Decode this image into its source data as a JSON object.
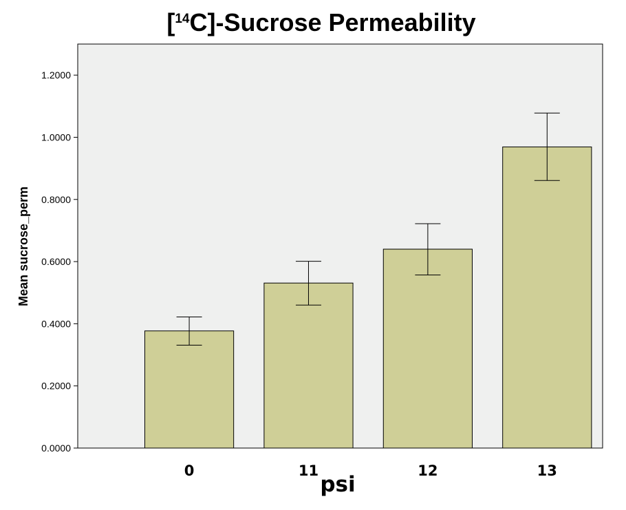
{
  "chart_data": {
    "type": "bar",
    "title": {
      "prefix": "[",
      "superscript": "14",
      "suffix": "C]-Sucrose Permeability"
    },
    "xlabel": "psi",
    "ylabel": "Mean sucrose_perm",
    "categories": [
      "0",
      "11",
      "12",
      "13"
    ],
    "values": [
      0.377,
      0.531,
      0.64,
      0.969
    ],
    "error_low": [
      0.331,
      0.46,
      0.557,
      0.861
    ],
    "error_high": [
      0.422,
      0.601,
      0.722,
      1.078
    ],
    "ylim": [
      0,
      1.3
    ],
    "yticks": [
      0,
      0.2,
      0.4,
      0.6,
      0.8,
      1.0,
      1.2
    ],
    "ytick_labels": [
      "0.0000",
      "0.2000",
      "0.4000",
      "0.6000",
      "0.8000",
      "1.0000",
      "1.2000"
    ],
    "grid": false,
    "colors": {
      "plot_background": "#eff0ef",
      "bar_fill": "#cfcf97",
      "bar_stroke": "#000000"
    }
  }
}
